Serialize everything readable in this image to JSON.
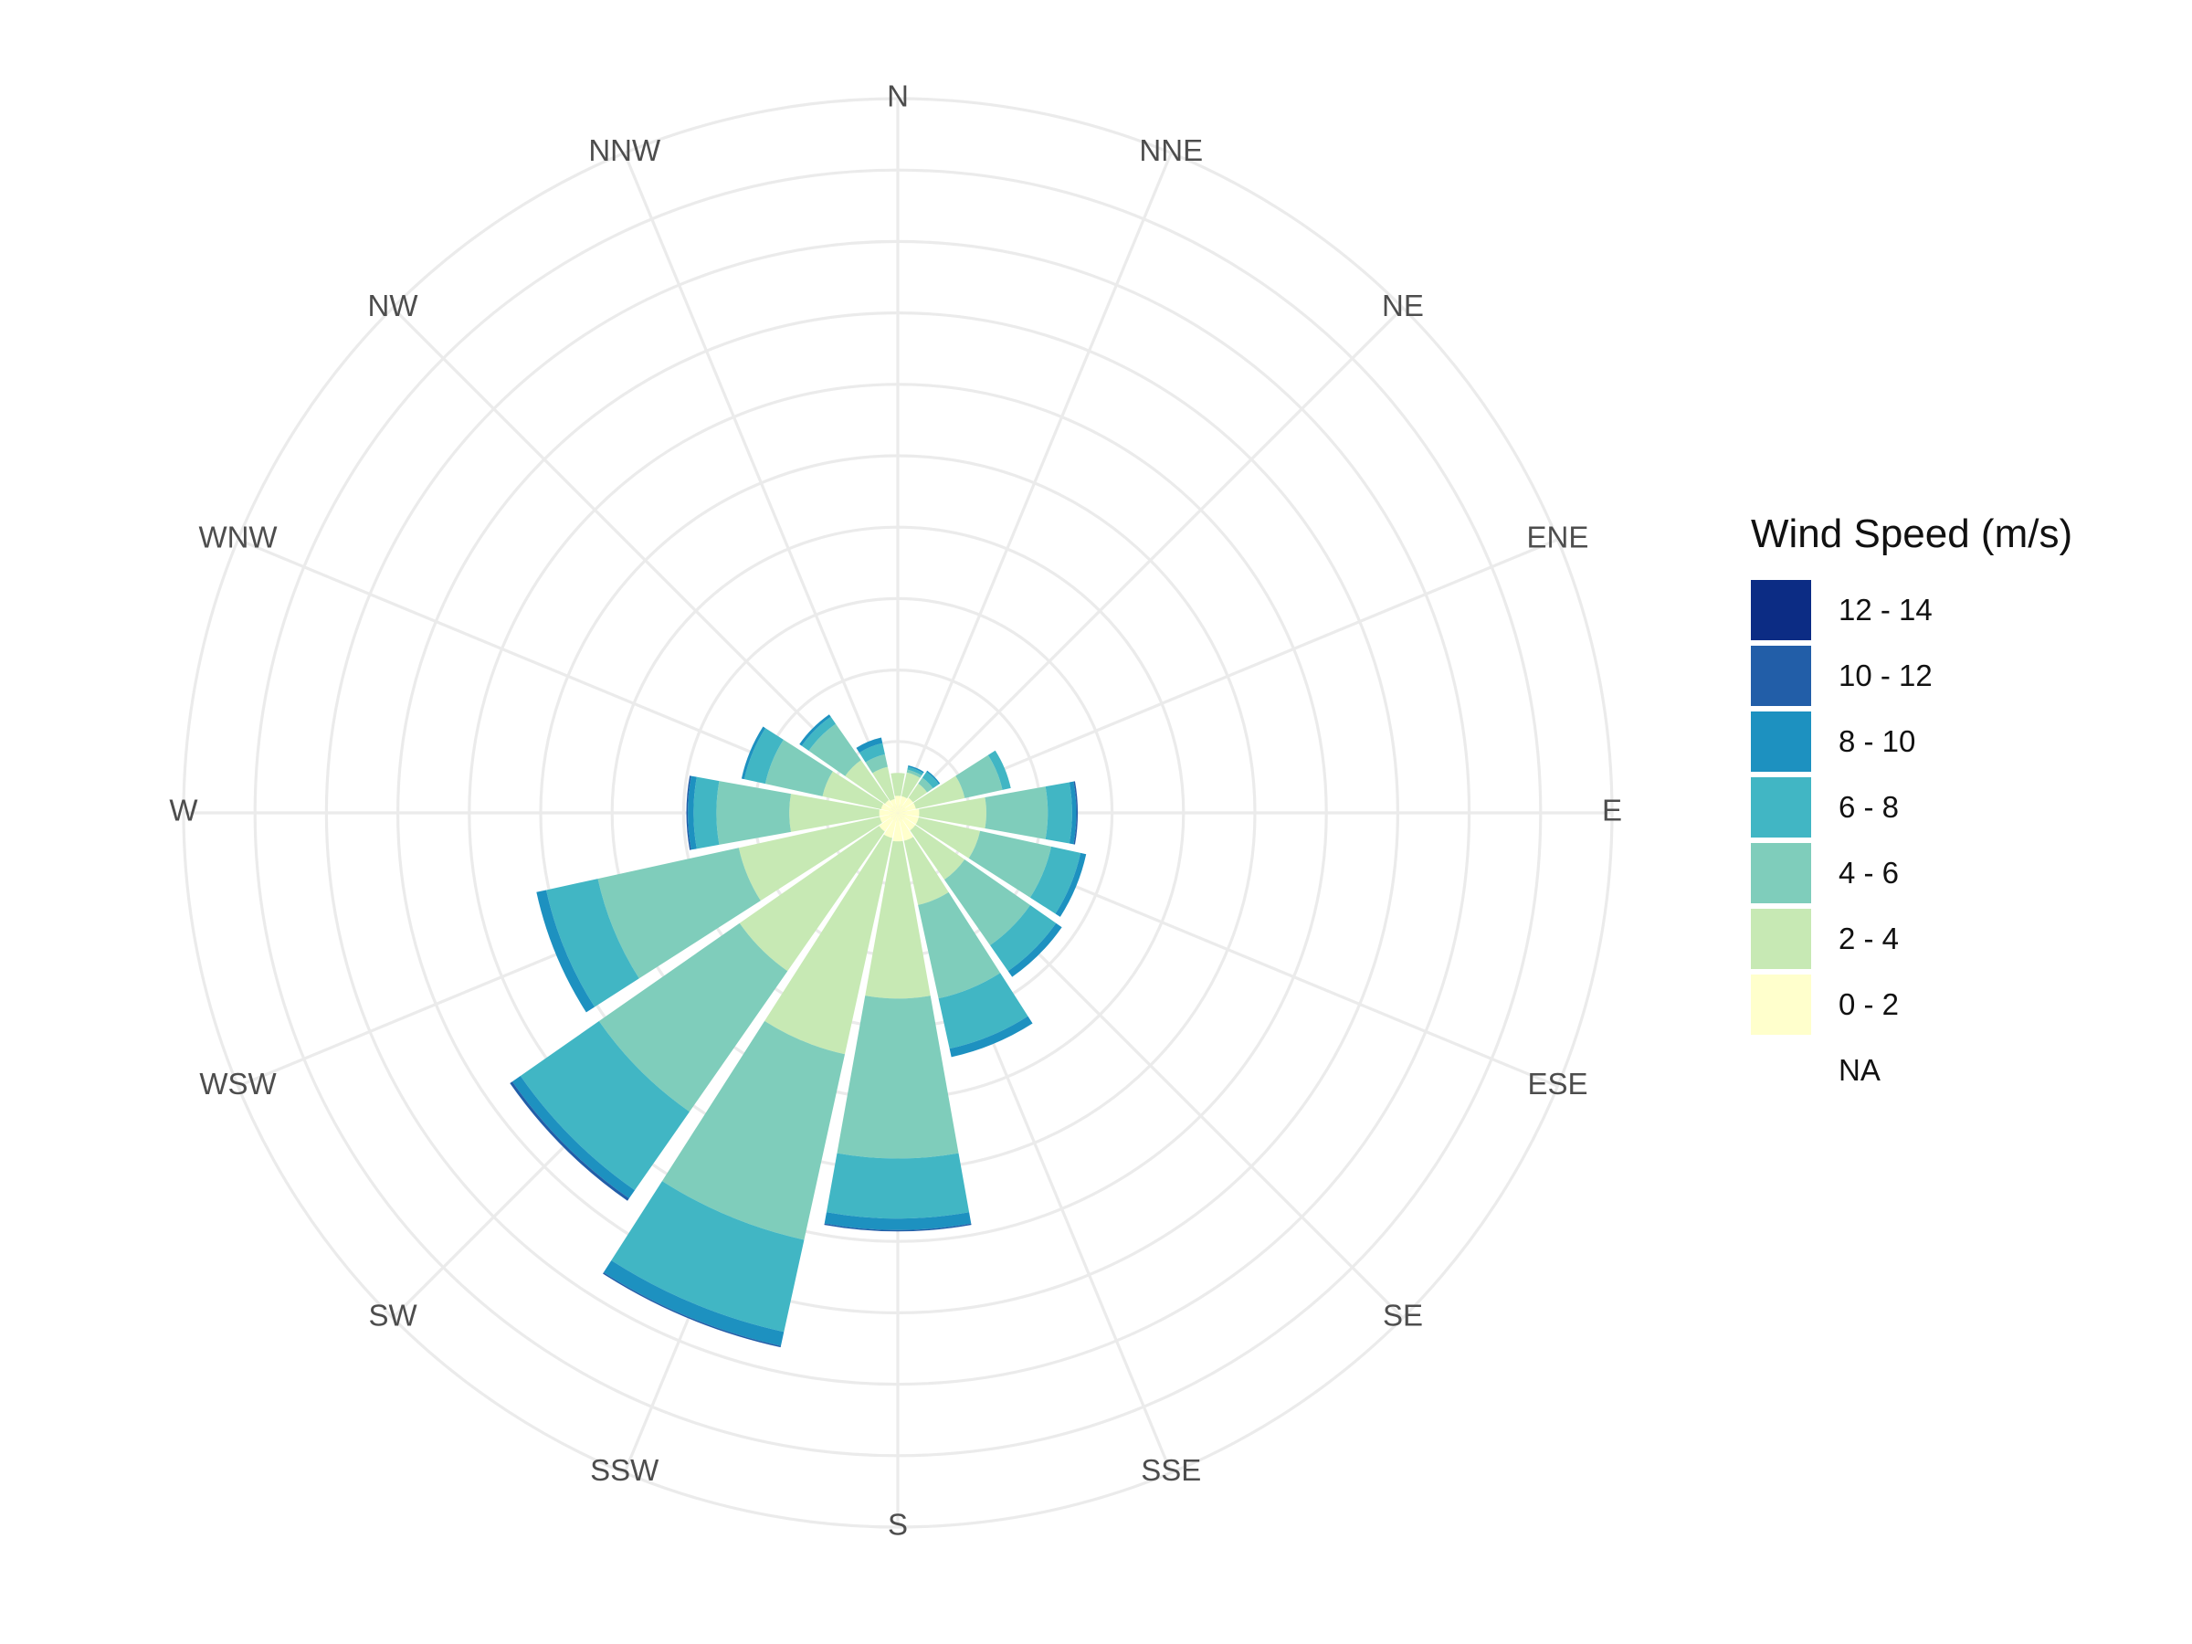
{
  "chart_data": {
    "type": "wind-rose (stacked polar bar)",
    "directions": [
      "N",
      "NNE",
      "NE",
      "ENE",
      "E",
      "ESE",
      "SE",
      "SSE",
      "S",
      "SSW",
      "SW",
      "WSW",
      "W",
      "WNW",
      "NW",
      "NNW"
    ],
    "speed_bins": [
      "0 - 2",
      "2 - 4",
      "4 - 6",
      "6 - 8",
      "8 - 10",
      "10 - 12",
      "12 - 14"
    ],
    "bin_colors": [
      "#ffffcc",
      "#c7e9b4",
      "#7fcdbb",
      "#41b6c4",
      "#1d91c0",
      "#225ea8",
      "#0c2c84"
    ],
    "series": [
      {
        "name": "0 - 2",
        "values": [
          1.2,
          1.2,
          1.3,
          1.3,
          1.5,
          1.5,
          1.5,
          2.0,
          2.0,
          1.8,
          1.6,
          1.3,
          1.3,
          1.2,
          1.1,
          1.0
        ]
      },
      {
        "name": "2 - 4",
        "values": [
          1.6,
          1.7,
          1.2,
          3.5,
          4.7,
          4.4,
          4.2,
          4.6,
          11.0,
          15.5,
          11.9,
          10.1,
          6.3,
          4.2,
          3.4,
          2.3
        ]
      },
      {
        "name": "4 - 6",
        "values": [
          0,
          0.2,
          0.5,
          2.7,
          4.3,
          5.1,
          5.6,
          6.7,
          11.2,
          13.3,
          12.0,
          10.1,
          5.1,
          4.1,
          3.1,
          0.9
        ]
      },
      {
        "name": "6 - 8",
        "values": [
          0,
          0.2,
          0.5,
          0.6,
          1.7,
          2.1,
          2.2,
          3.6,
          4.2,
          6.6,
          6.7,
          3.7,
          1.6,
          1.5,
          0.6,
          0.8
        ]
      },
      {
        "name": "8 - 10",
        "values": [
          0,
          0.1,
          0.1,
          0,
          0.3,
          0.4,
          0.5,
          0.6,
          0.8,
          1.0,
          0.7,
          0.7,
          0.4,
          0.2,
          0.2,
          0.4
        ]
      },
      {
        "name": "10 - 12",
        "values": [
          0,
          0,
          0,
          0,
          0.1,
          0,
          0,
          0,
          0.1,
          0.1,
          0.2,
          0,
          0.1,
          0,
          0,
          0
        ]
      },
      {
        "name": "12 - 14",
        "values": [
          0,
          0,
          0,
          0,
          0,
          0,
          0,
          0,
          0,
          0,
          0,
          0,
          0,
          0,
          0,
          0
        ]
      }
    ],
    "radial_range": [
      0,
      50
    ],
    "radial_gridlines": [
      5,
      10,
      15,
      20,
      25,
      30,
      35,
      40,
      45,
      50
    ],
    "legend": {
      "title": "Wind Speed (m/s)",
      "position": "right",
      "entries": [
        "12 - 14",
        "10 - 12",
        "8 - 10",
        "6 - 8",
        "4 - 6",
        "2 - 4",
        "0 - 2",
        "NA"
      ],
      "entry_colors": [
        "#0c2c84",
        "#225ea8",
        "#1d91c0",
        "#41b6c4",
        "#7fcdbb",
        "#c7e9b4",
        "#ffffcc",
        "#ffffff"
      ]
    },
    "grid": true,
    "grid_color": "#ebebeb"
  }
}
